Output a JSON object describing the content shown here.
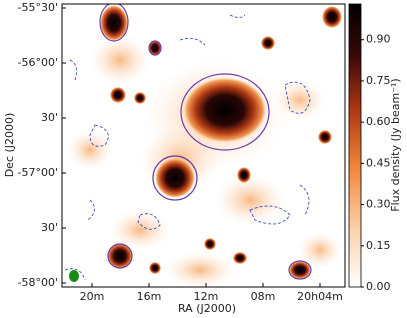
{
  "chart_data": {
    "type": "image",
    "xlabel": "RA (J2000)",
    "ylabel": "Dec (J2000)",
    "x_tick_labels": [
      "20m",
      "16m",
      "12m",
      "08m",
      "20h04m"
    ],
    "y_tick_labels": [
      "-55°30'",
      "-56°00'",
      "30'",
      "-57°00'",
      "30'",
      "-58°00'"
    ],
    "colorbar": {
      "label": "Flux density (Jy beam⁻¹)",
      "lim": [
        0,
        1.03
      ],
      "ticks": [
        {
          "value": 0,
          "label": "0.00"
        },
        {
          "value": 0.15,
          "label": "0.15"
        },
        {
          "value": 0.3,
          "label": "0.30"
        },
        {
          "value": 0.45,
          "label": "0.45"
        },
        {
          "value": 0.6,
          "label": "0.60"
        },
        {
          "value": 0.75,
          "label": "0.75"
        },
        {
          "value": 0.9,
          "label": "0.90"
        }
      ]
    }
  }
}
